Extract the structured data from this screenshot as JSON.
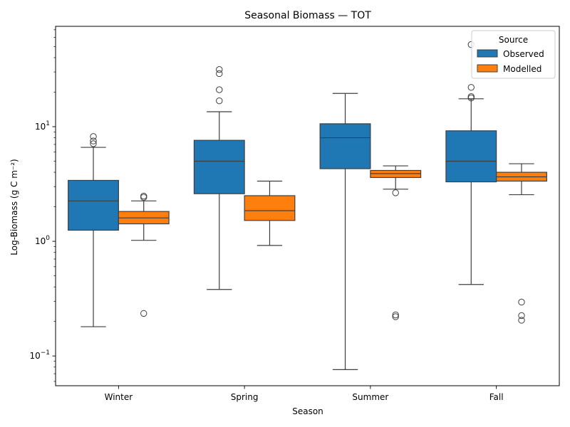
{
  "chart_data": {
    "type": "boxplot",
    "title": "Seasonal Biomass — TOT",
    "xlabel": "Season",
    "ylabel": "Log-Biomass (g C m⁻²)",
    "yscale": "log",
    "ylim": [
      0.055,
      75
    ],
    "yticks": [
      {
        "value": 0.1,
        "base": "10",
        "exp": "−1"
      },
      {
        "value": 1,
        "base": "10",
        "exp": "0"
      },
      {
        "value": 10,
        "base": "10",
        "exp": "1"
      }
    ],
    "grid": false,
    "legend": {
      "title": "Source",
      "position": "top-right"
    },
    "categories": [
      "Winter",
      "Spring",
      "Summer",
      "Fall"
    ],
    "series": [
      {
        "name": "Observed",
        "color": "#1f77b4",
        "boxes": [
          {
            "whisker_low": 0.18,
            "q1": 1.25,
            "median": 2.25,
            "q3": 3.4,
            "whisker_high": 6.6,
            "outliers": [
              7.1,
              7.5,
              8.2
            ]
          },
          {
            "whisker_low": 0.38,
            "q1": 2.6,
            "median": 5.0,
            "q3": 7.6,
            "whisker_high": 13.5,
            "outliers": [
              16.8,
              21.0,
              29.0,
              31.5
            ]
          },
          {
            "whisker_low": 0.076,
            "q1": 4.3,
            "median": 8.0,
            "q3": 10.6,
            "whisker_high": 19.5,
            "outliers": []
          },
          {
            "whisker_low": 0.42,
            "q1": 3.3,
            "median": 5.0,
            "q3": 9.2,
            "whisker_high": 17.5,
            "outliers": [
              17.8,
              18.3,
              22.0,
              52.0
            ]
          }
        ]
      },
      {
        "name": "Modelled",
        "color": "#ff7f0e",
        "boxes": [
          {
            "whisker_low": 1.02,
            "q1": 1.42,
            "median": 1.6,
            "q3": 1.82,
            "whisker_high": 2.25,
            "outliers": [
              0.235,
              2.42,
              2.48
            ]
          },
          {
            "whisker_low": 0.92,
            "q1": 1.52,
            "median": 1.85,
            "q3": 2.5,
            "whisker_high": 3.35,
            "outliers": []
          },
          {
            "whisker_low": 2.85,
            "q1": 3.6,
            "median": 3.9,
            "q3": 4.15,
            "whisker_high": 4.55,
            "outliers": [
              0.22,
              0.228,
              2.65
            ]
          },
          {
            "whisker_low": 2.55,
            "q1": 3.35,
            "median": 3.65,
            "q3": 4.0,
            "whisker_high": 4.75,
            "outliers": [
              0.205,
              0.225,
              0.295
            ]
          }
        ]
      }
    ]
  }
}
